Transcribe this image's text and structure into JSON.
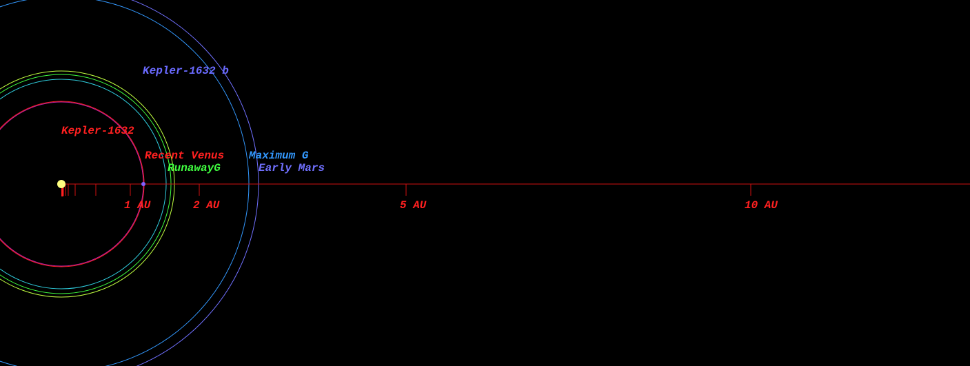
{
  "diagram": {
    "star": {
      "label": "Kepler-1632",
      "color": "#ff2020"
    },
    "planet": {
      "label": "Kepler-1632 b",
      "color": "#6a6aff",
      "au": 1.19
    },
    "zones": [
      {
        "name": "Recent Venus",
        "color": "#ff2020",
        "au": 1.2
      },
      {
        "name": "RunawayG",
        "color": "#40ff40",
        "au": 1.59
      },
      {
        "name": "Maximum G",
        "color": "#3399ff",
        "au": 2.72
      },
      {
        "name": "Early Mars",
        "color": "#7070ff",
        "au": 2.86
      }
    ],
    "extra_orbits": [
      {
        "color": "#30d0e0",
        "au": 1.52
      },
      {
        "color": "#c0ff40",
        "au": 1.64
      }
    ],
    "ticks": [
      {
        "value": 1,
        "label": "1 AU"
      },
      {
        "value": 2,
        "label": "2 AU"
      },
      {
        "value": 5,
        "label": "5 AU"
      },
      {
        "value": 10,
        "label": "10 AU"
      }
    ],
    "minor_ticks": [
      0.03,
      0.06,
      0.1,
      0.2,
      0.5
    ]
  }
}
